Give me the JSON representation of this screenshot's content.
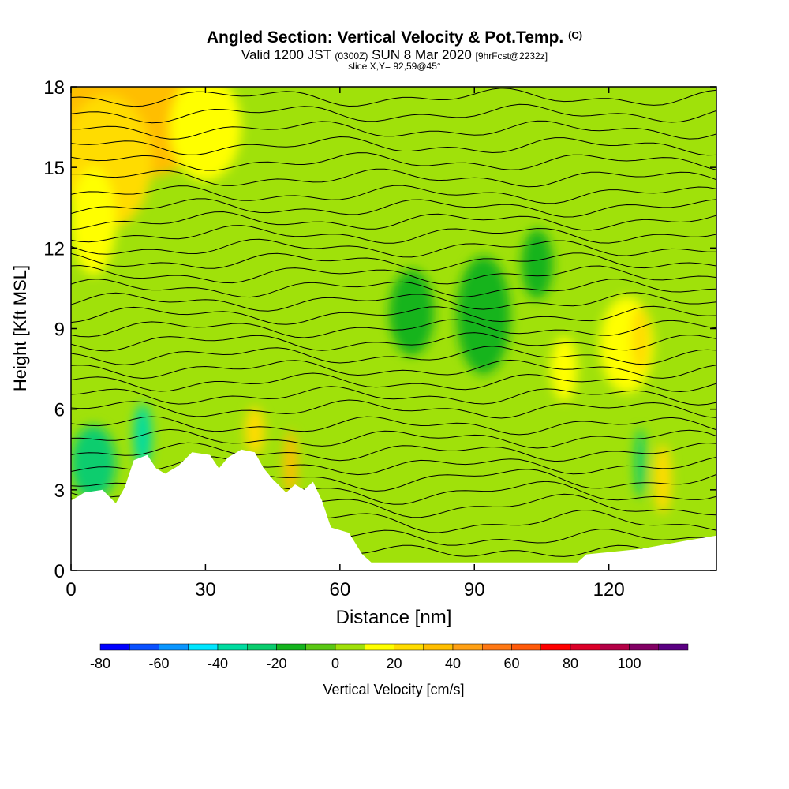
{
  "title": {
    "main": "Angled Section: Vertical Velocity & Pot.Temp.",
    "main_unit": "(C)",
    "valid_prefix": "Valid 1200 JST",
    "valid_utc": "(0300Z)",
    "valid_date": "SUN 8 Mar 2020",
    "forecast": "[9hrFcst@2232z]",
    "slice": "slice X,Y= 92,59@45°"
  },
  "chart_data": {
    "type": "heatmap",
    "xlabel": "Distance [nm]",
    "ylabel": "Height [Kft MSL]",
    "xlim": [
      0,
      144
    ],
    "ylim": [
      0,
      18
    ],
    "x_ticks": [
      0,
      30,
      60,
      90,
      120
    ],
    "y_ticks": [
      0,
      3,
      6,
      9,
      12,
      15,
      18
    ],
    "colorbar": {
      "label": "Vertical Velocity [cm/s]",
      "tick_labels": [
        -80,
        -60,
        -40,
        -20,
        0,
        20,
        40,
        60,
        80,
        100
      ],
      "bins": [
        {
          "from": -80,
          "to": -70,
          "color": "#0000ff"
        },
        {
          "from": -70,
          "to": -60,
          "color": "#0a50ff"
        },
        {
          "from": -60,
          "to": -50,
          "color": "#0a96ff"
        },
        {
          "from": -50,
          "to": -40,
          "color": "#00e6ff"
        },
        {
          "from": -40,
          "to": -30,
          "color": "#00dca0"
        },
        {
          "from": -30,
          "to": -20,
          "color": "#0acd6e"
        },
        {
          "from": -20,
          "to": -10,
          "color": "#14b41e"
        },
        {
          "from": -10,
          "to": 0,
          "color": "#5ac814"
        },
        {
          "from": 0,
          "to": 10,
          "color": "#a0e10a"
        },
        {
          "from": 10,
          "to": 20,
          "color": "#ffff00"
        },
        {
          "from": 20,
          "to": 30,
          "color": "#ffdc00"
        },
        {
          "from": 30,
          "to": 40,
          "color": "#ffbe00"
        },
        {
          "from": 40,
          "to": 50,
          "color": "#ffa014"
        },
        {
          "from": 50,
          "to": 60,
          "color": "#ff7814"
        },
        {
          "from": 60,
          "to": 70,
          "color": "#ff5a0a"
        },
        {
          "from": 70,
          "to": 80,
          "color": "#ff0000"
        },
        {
          "from": 80,
          "to": 90,
          "color": "#dc0028"
        },
        {
          "from": 90,
          "to": 100,
          "color": "#b40046"
        },
        {
          "from": 100,
          "to": 110,
          "color": "#820064"
        },
        {
          "from": 110,
          "to": 120,
          "color": "#5a0082"
        }
      ]
    },
    "terrain_height": [
      {
        "x": 0,
        "y": 2.6
      },
      {
        "x": 3,
        "y": 2.9
      },
      {
        "x": 7,
        "y": 3.0
      },
      {
        "x": 10,
        "y": 2.5
      },
      {
        "x": 12,
        "y": 3.1
      },
      {
        "x": 14,
        "y": 4.1
      },
      {
        "x": 17,
        "y": 4.3
      },
      {
        "x": 19,
        "y": 3.8
      },
      {
        "x": 21,
        "y": 3.6
      },
      {
        "x": 24,
        "y": 3.9
      },
      {
        "x": 27,
        "y": 4.4
      },
      {
        "x": 31,
        "y": 4.3
      },
      {
        "x": 33,
        "y": 3.8
      },
      {
        "x": 35,
        "y": 4.2
      },
      {
        "x": 38,
        "y": 4.5
      },
      {
        "x": 41,
        "y": 4.4
      },
      {
        "x": 43,
        "y": 3.8
      },
      {
        "x": 45,
        "y": 3.4
      },
      {
        "x": 48,
        "y": 2.9
      },
      {
        "x": 50,
        "y": 3.2
      },
      {
        "x": 52,
        "y": 3.0
      },
      {
        "x": 54,
        "y": 3.3
      },
      {
        "x": 56,
        "y": 2.6
      },
      {
        "x": 58,
        "y": 1.6
      },
      {
        "x": 62,
        "y": 1.4
      },
      {
        "x": 65,
        "y": 0.6
      },
      {
        "x": 67,
        "y": 0.3
      },
      {
        "x": 113,
        "y": 0.3
      },
      {
        "x": 115,
        "y": 0.6
      },
      {
        "x": 127,
        "y": 0.8
      },
      {
        "x": 137,
        "y": 1.1
      },
      {
        "x": 144,
        "y": 1.3
      }
    ],
    "velocity_features": [
      {
        "x": 14,
        "y": 16.8,
        "rx": 18,
        "ry": 2.2,
        "value": 30
      },
      {
        "x": 8,
        "y": 15.2,
        "rx": 10,
        "ry": 2.5,
        "value": 25
      },
      {
        "x": 30,
        "y": 16.5,
        "rx": 8,
        "ry": 2.0,
        "value": 15
      },
      {
        "x": 5,
        "y": 13.0,
        "rx": 5,
        "ry": 2.0,
        "value": 12
      },
      {
        "x": 76,
        "y": 9.6,
        "rx": 5,
        "ry": 1.6,
        "value": -15
      },
      {
        "x": 92,
        "y": 9.5,
        "rx": 6,
        "ry": 2.2,
        "value": -15
      },
      {
        "x": 104,
        "y": 11.4,
        "rx": 3.5,
        "ry": 1.3,
        "value": -15
      },
      {
        "x": 124,
        "y": 8.4,
        "rx": 6,
        "ry": 1.8,
        "value": 15
      },
      {
        "x": 127,
        "y": 8.6,
        "rx": 2,
        "ry": 1.2,
        "value": 25
      },
      {
        "x": 110,
        "y": 7.5,
        "rx": 3,
        "ry": 1.2,
        "value": 12
      },
      {
        "x": 5,
        "y": 4.0,
        "rx": 5,
        "ry": 1.4,
        "value": -30
      },
      {
        "x": 16,
        "y": 5.0,
        "rx": 2,
        "ry": 1.2,
        "value": -40
      },
      {
        "x": 41,
        "y": 5.2,
        "rx": 2.2,
        "ry": 0.9,
        "value": 25
      },
      {
        "x": 49,
        "y": 4.0,
        "rx": 1.5,
        "ry": 1.2,
        "value": 30
      },
      {
        "x": 132,
        "y": 3.4,
        "rx": 2,
        "ry": 1.3,
        "value": 25
      },
      {
        "x": 127,
        "y": 4.0,
        "rx": 1.2,
        "ry": 1.3,
        "value": -25
      }
    ],
    "potential_temperature_contours": {
      "color": "#000000",
      "levels": [
        {
          "base": 0.7,
          "dip": 0.1
        },
        {
          "base": 1.2,
          "dip": 0.2
        },
        {
          "base": 1.8,
          "dip": 0.3
        },
        {
          "base": 2.4,
          "dip": 0.3
        },
        {
          "base": 2.9,
          "dip": 0.3
        },
        {
          "base": 3.4,
          "dip": 0.3
        },
        {
          "base": 3.9,
          "dip": 0.2
        },
        {
          "base": 4.4,
          "dip": 0.2
        },
        {
          "base": 4.9,
          "dip": 0.2
        },
        {
          "base": 5.4,
          "dip": 0.2
        },
        {
          "base": 6.0,
          "dip": 0.2
        },
        {
          "base": 6.5,
          "dip": 0.2
        },
        {
          "base": 7.0,
          "dip": 0.2
        },
        {
          "base": 7.5,
          "dip": 0.2
        },
        {
          "base": 8.0,
          "dip": 0.2
        },
        {
          "base": 8.5,
          "dip": 0.2
        },
        {
          "base": 9.0,
          "dip": 0.2
        },
        {
          "base": 9.5,
          "dip": 0.2
        },
        {
          "base": 10.0,
          "dip": 0.2
        },
        {
          "base": 10.5,
          "dip": 0.2
        },
        {
          "base": 11.0,
          "dip": 0.2
        },
        {
          "base": 11.5,
          "dip": 0.2
        },
        {
          "base": 12.0,
          "dip": 0.2
        },
        {
          "base": 12.5,
          "dip": 0.2
        },
        {
          "base": 13.0,
          "dip": 0.2
        },
        {
          "base": 13.5,
          "dip": 0.2
        },
        {
          "base": 14.0,
          "dip": 0.2
        },
        {
          "base": 14.6,
          "dip": 0.2
        },
        {
          "base": 15.2,
          "dip": 0.2
        },
        {
          "base": 15.8,
          "dip": 0.2
        },
        {
          "base": 16.4,
          "dip": 0.2
        },
        {
          "base": 17.0,
          "dip": 0.2
        },
        {
          "base": 17.6,
          "dip": 0.2
        }
      ]
    }
  }
}
